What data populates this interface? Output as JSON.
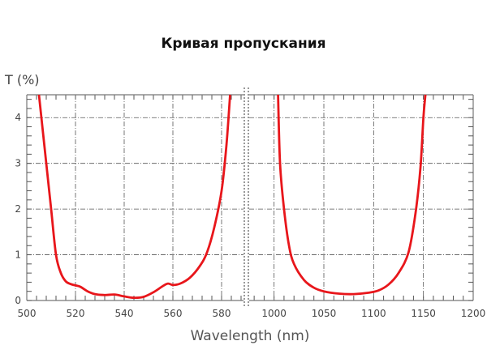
{
  "chart_data": {
    "type": "line",
    "title": "Кривая пропускания",
    "ylabel": "T (%)",
    "xlabel": "Wavelength (nm)",
    "ylim": [
      0,
      4.5
    ],
    "yticks": [
      "0",
      "1",
      "2",
      "3",
      "4"
    ],
    "grid": true,
    "broken_x_axis": true,
    "line_color": "#e8161b",
    "panels": [
      {
        "xlim": [
          500,
          589
        ],
        "xticks": [
          "500",
          "520",
          "540",
          "560",
          "580"
        ],
        "points": [
          [
            505,
            4.5
          ],
          [
            506,
            4
          ],
          [
            508,
            3
          ],
          [
            510,
            2
          ],
          [
            512,
            1
          ],
          [
            514,
            0.6
          ],
          [
            516,
            0.42
          ],
          [
            518,
            0.36
          ],
          [
            520,
            0.33
          ],
          [
            522,
            0.3
          ],
          [
            525,
            0.2
          ],
          [
            528,
            0.14
          ],
          [
            532,
            0.12
          ],
          [
            536,
            0.13
          ],
          [
            540,
            0.09
          ],
          [
            544,
            0.06
          ],
          [
            548,
            0.08
          ],
          [
            552,
            0.18
          ],
          [
            556,
            0.32
          ],
          [
            558,
            0.37
          ],
          [
            560,
            0.34
          ],
          [
            563,
            0.37
          ],
          [
            567,
            0.5
          ],
          [
            571,
            0.75
          ],
          [
            574,
            1.05
          ],
          [
            577,
            1.6
          ],
          [
            580,
            2.4
          ],
          [
            582,
            3.4
          ],
          [
            583.5,
            4.5
          ]
        ]
      },
      {
        "xlim": [
          975,
          1200
        ],
        "xticks": [
          "1000",
          "1050",
          "1100",
          "1150",
          "1200"
        ],
        "points": [
          [
            1004,
            4.5
          ],
          [
            1006,
            3
          ],
          [
            1010,
            2
          ],
          [
            1015,
            1.2
          ],
          [
            1020,
            0.8
          ],
          [
            1030,
            0.45
          ],
          [
            1040,
            0.28
          ],
          [
            1050,
            0.2
          ],
          [
            1065,
            0.15
          ],
          [
            1080,
            0.14
          ],
          [
            1095,
            0.17
          ],
          [
            1105,
            0.22
          ],
          [
            1115,
            0.35
          ],
          [
            1125,
            0.6
          ],
          [
            1135,
            1.05
          ],
          [
            1142,
            1.9
          ],
          [
            1147,
            2.9
          ],
          [
            1150,
            4
          ],
          [
            1152,
            4.5
          ]
        ]
      }
    ]
  }
}
